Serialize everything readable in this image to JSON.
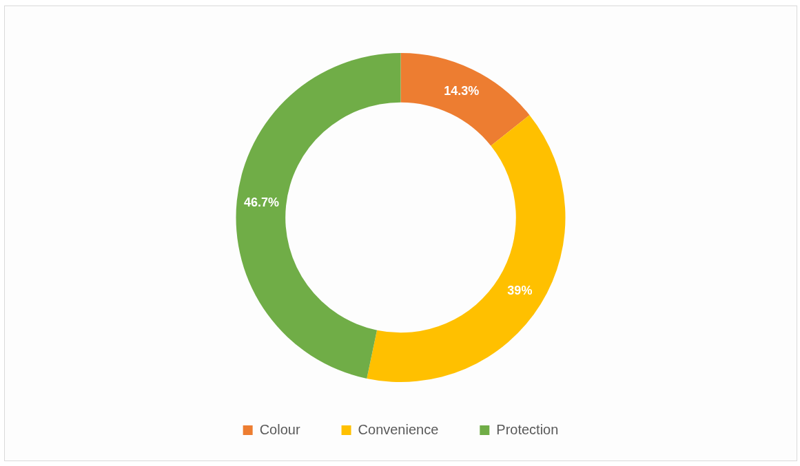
{
  "chart_data": {
    "type": "donut",
    "categories": [
      "Colour",
      "Convenience",
      "Protection"
    ],
    "values": [
      14.3,
      39,
      46.7
    ],
    "colors": [
      "#ed7d31",
      "#ffc000",
      "#70ad47"
    ],
    "value_labels": [
      "14.3%",
      "39%",
      "46.7%"
    ],
    "legend": "bottom"
  }
}
